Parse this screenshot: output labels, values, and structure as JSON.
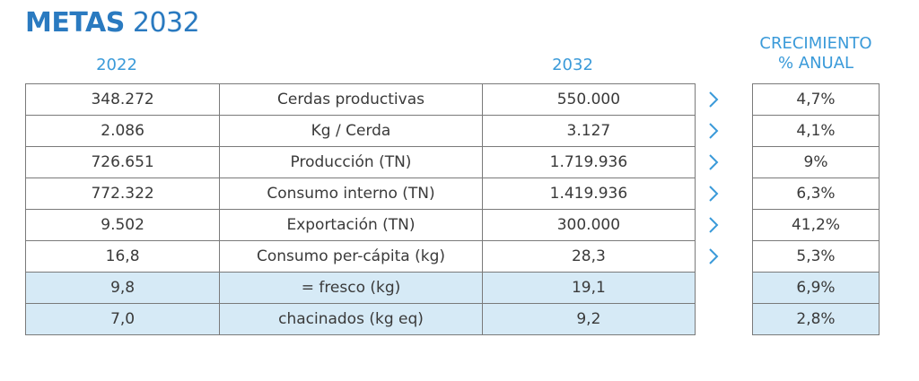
{
  "title": {
    "bold": "METAS",
    "year": "2032"
  },
  "headers": {
    "col_2022": "2022",
    "col_2032": "2032",
    "growth_line1": "CRECIMIENTO",
    "growth_line2": "% ANUAL"
  },
  "rows": [
    {
      "v2022": "348.272",
      "label": "Cerdas productivas",
      "v2032": "550.000",
      "growth": "4,7%",
      "arrow": true,
      "highlight": false
    },
    {
      "v2022": "2.086",
      "label": "Kg / Cerda",
      "v2032": "3.127",
      "growth": "4,1%",
      "arrow": true,
      "highlight": false
    },
    {
      "v2022": "726.651",
      "label": "Producción (TN)",
      "v2032": "1.719.936",
      "growth": "9%",
      "arrow": true,
      "highlight": false
    },
    {
      "v2022": "772.322",
      "label": "Consumo interno (TN)",
      "v2032": "1.419.936",
      "growth": "6,3%",
      "arrow": true,
      "highlight": false
    },
    {
      "v2022": "9.502",
      "label": "Exportación (TN)",
      "v2032": "300.000",
      "growth": "41,2%",
      "arrow": true,
      "highlight": false
    },
    {
      "v2022": "16,8",
      "label": "Consumo per-cápita (kg)",
      "v2032": "28,3",
      "growth": "5,3%",
      "arrow": true,
      "highlight": false
    },
    {
      "v2022": "9,8",
      "label": "= fresco (kg)",
      "v2032": "19,1",
      "growth": "6,9%",
      "arrow": false,
      "highlight": true
    },
    {
      "v2022": "7,0",
      "label": "chacinados (kg eq)",
      "v2032": "9,2",
      "growth": "2,8%",
      "arrow": false,
      "highlight": true
    }
  ],
  "icons": {
    "arrow": "chevron-right-icon"
  },
  "colors": {
    "title": "#2a7ac0",
    "header": "#3a9ad9",
    "highlight": "#d6eaf6",
    "arrow": "#3a9ad9",
    "border": "#7a7a7a"
  }
}
